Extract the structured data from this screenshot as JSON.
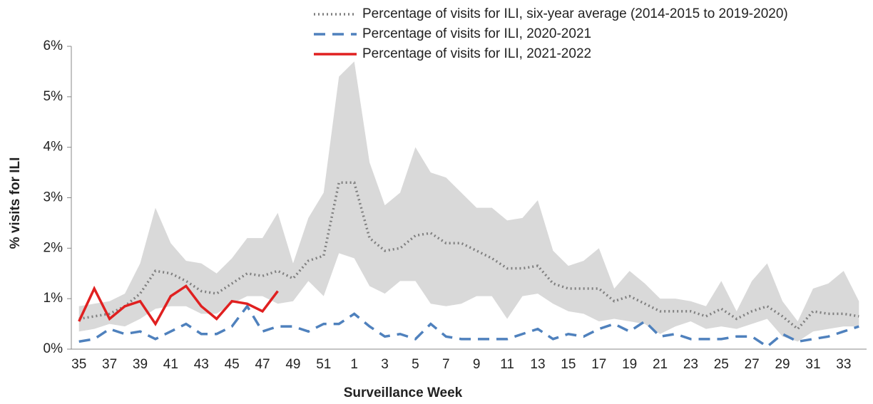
{
  "chart_data": {
    "type": "line",
    "y_label": "% visits for ILI",
    "x_label": "Surveillance Week",
    "categories": [
      "35",
      null,
      "37",
      null,
      "39",
      null,
      "41",
      null,
      "43",
      null,
      "45",
      null,
      "47",
      null,
      "49",
      null,
      "51",
      null,
      "1",
      null,
      "3",
      null,
      "5",
      null,
      "7",
      null,
      "9",
      null,
      "11",
      null,
      "13",
      null,
      "15",
      null,
      "17",
      null,
      "19",
      null,
      "21",
      null,
      "23",
      null,
      "25",
      null,
      "27",
      null,
      "29",
      null,
      "31",
      null,
      "33",
      null
    ],
    "ylim": [
      0,
      6
    ],
    "yticks": [
      {
        "value": 0,
        "label": "0%"
      },
      {
        "value": 1,
        "label": "1%"
      },
      {
        "value": 2,
        "label": "2%"
      },
      {
        "value": 3,
        "label": "3%"
      },
      {
        "value": 4,
        "label": "4%"
      },
      {
        "value": 5,
        "label": "5%"
      },
      {
        "value": 6,
        "label": "6%"
      }
    ],
    "band": {
      "color": "#d9d9d9",
      "upper": [
        0.85,
        0.9,
        0.95,
        1.1,
        1.7,
        2.8,
        2.1,
        1.75,
        1.7,
        1.5,
        1.8,
        2.2,
        2.2,
        2.7,
        1.7,
        2.6,
        3.1,
        5.4,
        5.7,
        3.7,
        2.85,
        3.1,
        4.0,
        3.5,
        3.4,
        3.1,
        2.8,
        2.8,
        2.55,
        2.6,
        2.95,
        1.95,
        1.65,
        1.75,
        2.0,
        1.2,
        1.55,
        1.3,
        1.0,
        1.0,
        0.95,
        0.85,
        1.35,
        0.75,
        1.35,
        1.7,
        0.95,
        0.55,
        1.2,
        1.3,
        1.55,
        0.95
      ],
      "lower": [
        0.35,
        0.4,
        0.5,
        0.45,
        0.6,
        0.8,
        0.85,
        0.85,
        0.7,
        0.7,
        0.9,
        1.05,
        1.05,
        0.9,
        0.95,
        1.35,
        1.05,
        1.9,
        1.8,
        1.25,
        1.1,
        1.35,
        1.35,
        0.9,
        0.85,
        0.9,
        1.05,
        1.05,
        0.6,
        1.05,
        1.1,
        0.9,
        0.75,
        0.7,
        0.55,
        0.6,
        0.55,
        0.5,
        0.3,
        0.45,
        0.55,
        0.4,
        0.45,
        0.4,
        0.5,
        0.6,
        0.25,
        0.15,
        0.35,
        0.4,
        0.45,
        0.45
      ]
    },
    "series": [
      {
        "name": "Percentage of visits for ILI, six-year average (2014-2015 to 2019-2020)",
        "color": "#808080",
        "style": "dotted",
        "values": [
          0.6,
          0.65,
          0.7,
          0.85,
          1.1,
          1.55,
          1.5,
          1.35,
          1.15,
          1.1,
          1.3,
          1.5,
          1.45,
          1.55,
          1.4,
          1.75,
          1.85,
          3.3,
          3.3,
          2.2,
          1.95,
          2.0,
          2.25,
          2.3,
          2.1,
          2.1,
          1.95,
          1.8,
          1.6,
          1.6,
          1.65,
          1.3,
          1.2,
          1.2,
          1.2,
          0.95,
          1.05,
          0.9,
          0.75,
          0.75,
          0.75,
          0.65,
          0.8,
          0.6,
          0.75,
          0.85,
          0.65,
          0.4,
          0.75,
          0.7,
          0.7,
          0.65
        ]
      },
      {
        "name": "Percentage of visits for ILI, 2020-2021",
        "color": "#4f81bd",
        "style": "dashed",
        "values": [
          0.15,
          0.2,
          0.4,
          0.3,
          0.35,
          0.2,
          0.35,
          0.5,
          0.3,
          0.3,
          0.45,
          0.85,
          0.35,
          0.45,
          0.45,
          0.35,
          0.5,
          0.5,
          0.7,
          0.45,
          0.25,
          0.3,
          0.2,
          0.5,
          0.25,
          0.2,
          0.2,
          0.2,
          0.2,
          0.3,
          0.4,
          0.2,
          0.3,
          0.25,
          0.4,
          0.5,
          0.35,
          0.55,
          0.25,
          0.3,
          0.2,
          0.2,
          0.2,
          0.25,
          0.25,
          0.05,
          0.3,
          0.15,
          0.2,
          0.25,
          0.35,
          0.45
        ]
      },
      {
        "name": "Percentage of visits for ILI, 2021-2022",
        "color": "#e02020",
        "style": "solid",
        "values": [
          0.55,
          1.2,
          0.6,
          0.85,
          0.95,
          0.5,
          1.05,
          1.25,
          0.85,
          0.6,
          0.95,
          0.9,
          0.75,
          1.15,
          null,
          null,
          null,
          null,
          null,
          null,
          null,
          null,
          null,
          null,
          null,
          null,
          null,
          null,
          null,
          null,
          null,
          null,
          null,
          null,
          null,
          null,
          null,
          null,
          null,
          null,
          null,
          null,
          null,
          null,
          null,
          null,
          null,
          null,
          null,
          null,
          null,
          null
        ]
      }
    ]
  }
}
